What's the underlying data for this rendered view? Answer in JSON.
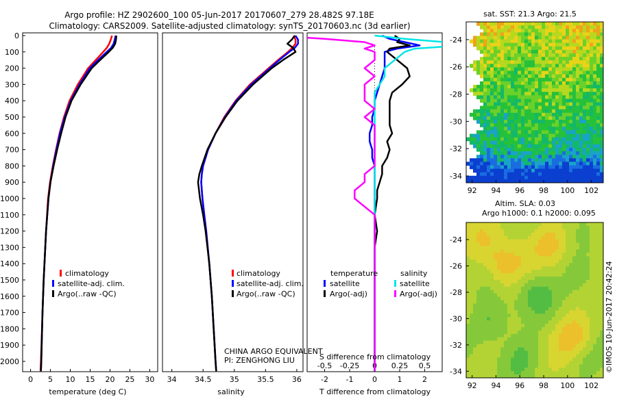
{
  "header": {
    "line1": "Argo profile: HZ 2902600_100 05-Jun-2017 20170607_279 28.482S 97.18E",
    "line2": "Climatology: CARS2009. Satellite-adjusted climatology: synTS_20170603.nc (3d earlier)"
  },
  "colors": {
    "climatology": "#ff0000",
    "satellite": "#0000ff",
    "argo": "#000000",
    "satellite_salinity": "#00e5e5",
    "argo_salinity": "#ff00ff"
  },
  "depth_ticks": [
    "0",
    "100",
    "200",
    "300",
    "400",
    "500",
    "600",
    "700",
    "800",
    "900",
    "1000",
    "1100",
    "1200",
    "1300",
    "1400",
    "1500",
    "1600",
    "1700",
    "1800",
    "1900",
    "2000"
  ],
  "chart_data": [
    {
      "type": "line",
      "xlabel": "temperature (deg C)",
      "ylabel": "",
      "xlim": [
        -2,
        32
      ],
      "ylim": [
        2080,
        0
      ],
      "xticks": [
        "0",
        "5",
        "10",
        "15",
        "20",
        "25",
        "30"
      ],
      "legend": [
        "climatology",
        "satellite-adj. clim.",
        "Argo(..raw -QC)"
      ],
      "depth": [
        0,
        25,
        50,
        75,
        100,
        150,
        200,
        300,
        400,
        500,
        600,
        700,
        800,
        900,
        1000,
        1200,
        1500,
        1700,
        2000,
        2060
      ],
      "series": [
        {
          "name": "climatology",
          "values": [
            20.5,
            20.2,
            19.8,
            19.2,
            18.3,
            16.4,
            14.5,
            11.9,
            9.8,
            8.4,
            7.3,
            6.4,
            5.6,
            4.9,
            4.4,
            3.9,
            3.3,
            3.0,
            2.6,
            2.5
          ]
        },
        {
          "name": "satellite-adj. clim.",
          "values": [
            21.4,
            21.2,
            20.9,
            20.3,
            19.2,
            17.0,
            14.9,
            12.3,
            10.1,
            8.6,
            7.4,
            6.5,
            5.7,
            5.0,
            4.5,
            3.9,
            3.3,
            3.0,
            2.7,
            2.6
          ]
        },
        {
          "name": "Argo(..raw -QC)",
          "values": [
            21.6,
            21.5,
            21.3,
            20.7,
            19.7,
            17.5,
            15.4,
            12.6,
            10.3,
            8.8,
            7.7,
            6.7,
            5.8,
            5.0,
            4.5,
            3.9,
            3.3,
            3.0,
            2.7,
            2.6
          ]
        }
      ]
    },
    {
      "type": "line",
      "xlabel": "salinity",
      "ylabel": "",
      "xlim": [
        33.85,
        36.1
      ],
      "ylim": [
        2080,
        0
      ],
      "xticks": [
        "34",
        "34.5",
        "35",
        "35.5",
        "36"
      ],
      "legend": [
        "climatology",
        "satellite-adj. clim.",
        "Argo(..raw -QC)"
      ],
      "depth": [
        0,
        25,
        50,
        75,
        100,
        150,
        200,
        300,
        400,
        500,
        600,
        700,
        800,
        850,
        900,
        1000,
        1100,
        1200,
        1400,
        1600,
        1800,
        2000,
        2060
      ],
      "series": [
        {
          "name": "climatology",
          "values": [
            35.95,
            35.98,
            35.98,
            35.93,
            35.86,
            35.7,
            35.55,
            35.25,
            35.02,
            34.84,
            34.7,
            34.58,
            34.5,
            34.48,
            34.47,
            34.49,
            34.52,
            34.55,
            34.6,
            34.64,
            34.67,
            34.7,
            34.71
          ]
        },
        {
          "name": "satellite-adj. clim.",
          "values": [
            35.98,
            36.02,
            36.02,
            35.97,
            35.88,
            35.72,
            35.57,
            35.27,
            35.03,
            34.85,
            34.7,
            34.58,
            34.5,
            34.48,
            34.47,
            34.49,
            34.52,
            34.55,
            34.6,
            34.64,
            34.67,
            34.7,
            34.71
          ]
        },
        {
          "name": "Argo(..raw -QC)",
          "values": [
            35.97,
            35.92,
            35.85,
            35.94,
            35.98,
            35.78,
            35.6,
            35.3,
            35.05,
            34.86,
            34.7,
            34.57,
            34.48,
            34.44,
            34.42,
            34.45,
            34.5,
            34.54,
            34.6,
            34.64,
            34.67,
            34.7,
            34.71
          ]
        }
      ]
    },
    {
      "type": "line",
      "xlabel": "T difference from climatology",
      "title_bottom": "S difference from climatology",
      "ylabel": "",
      "xlim": [
        -2.7,
        2.7
      ],
      "ylim": [
        2080,
        0
      ],
      "xticks": [
        "-2",
        "-1",
        "0",
        "1",
        "2"
      ],
      "sticks": [
        "-0.5",
        "-0.25",
        "0",
        "0.25",
        "0.5"
      ],
      "legend_headers": [
        "temperature",
        "salinity"
      ],
      "legend": [
        "satellite",
        "Argo(-adj)",
        "satellite",
        "Argo(-adj)"
      ],
      "depth": [
        0,
        20,
        40,
        60,
        80,
        100,
        150,
        200,
        250,
        300,
        350,
        400,
        450,
        500,
        550,
        600,
        650,
        700,
        750,
        800,
        850,
        900,
        950,
        1000,
        1100,
        1200,
        1300,
        1500,
        1700,
        1900,
        2060
      ],
      "series": [
        {
          "name": "satellite",
          "values": [
            0.3,
            0.6,
            1.2,
            1.8,
            0.9,
            0.4,
            0.4,
            0.4,
            0.3,
            0.2,
            0.1,
            0.0,
            0.0,
            -0.1,
            -0.1,
            -0.2,
            -0.2,
            -0.1,
            -0.1,
            0.0,
            0.0,
            0.0,
            0.0,
            0.0,
            0.0,
            0.0,
            0.0,
            0.0,
            0.0,
            0.0,
            0.0
          ]
        },
        {
          "name": "Argo(-adj)",
          "values": [
            0.8,
            1.0,
            0.9,
            1.4,
            0.6,
            0.5,
            0.9,
            1.3,
            1.4,
            1.1,
            0.7,
            0.6,
            0.6,
            0.6,
            0.6,
            0.7,
            0.5,
            0.6,
            0.5,
            0.3,
            0.3,
            0.2,
            0.1,
            0.1,
            0.0,
            0.1,
            0.0,
            0.0,
            0.0,
            0.0,
            0.0
          ]
        },
        {
          "name": "satellite",
          "values": [
            0.0,
            0.3,
            0.7,
            0.9,
            0.4,
            0.3,
            0.2,
            0.1,
            0.1,
            0.05,
            0.0,
            0.0,
            0.0,
            0.0,
            0.0,
            0.0,
            0.0,
            0.0,
            0.0,
            0.0,
            0.0,
            0.0,
            0.0,
            0.0,
            0.0,
            0.0,
            0.0,
            0.0,
            0.0,
            0.0,
            0.0
          ]
        },
        {
          "name": "Argo(-adj)",
          "values": [
            -1.0,
            -0.5,
            -0.1,
            0.0,
            -0.1,
            0.0,
            0.0,
            -0.1,
            0.0,
            -0.1,
            -0.1,
            -0.1,
            0.0,
            -0.1,
            0.0,
            0.0,
            0.0,
            0.0,
            0.0,
            0.0,
            -0.1,
            -0.1,
            -0.2,
            -0.2,
            0.0,
            0.0,
            0.0,
            0.0,
            0.0,
            0.0,
            0.0
          ]
        }
      ]
    },
    {
      "type": "heatmap",
      "title": "sat. SST: 21.3 Argo: 21.5",
      "xlim": [
        91.5,
        103
      ],
      "ylim": [
        -34.5,
        -22.7
      ],
      "xticks": [
        "92",
        "94",
        "96",
        "98",
        "100",
        "102"
      ],
      "yticks": [
        "-24",
        "-26",
        "-28",
        "-30",
        "-32",
        "-34"
      ]
    },
    {
      "type": "heatmap",
      "title": "Altim. SLA: 0.03",
      "subtitle": "Argo h1000: 0.1 h2000: 0.095",
      "xlim": [
        91.5,
        103
      ],
      "ylim": [
        -34.5,
        -22.7
      ],
      "xticks": [
        "92",
        "94",
        "96",
        "98",
        "100",
        "102"
      ],
      "yticks": [
        "-24",
        "-26",
        "-28",
        "-30",
        "-32",
        "-34"
      ]
    }
  ],
  "annotations": {
    "org_line1": "CHINA ARGO EQUIVALENT",
    "org_line2": "PI: ZENGHONG LIU",
    "credit": "©IMOS 10-Jun-2017 20:42:24"
  }
}
